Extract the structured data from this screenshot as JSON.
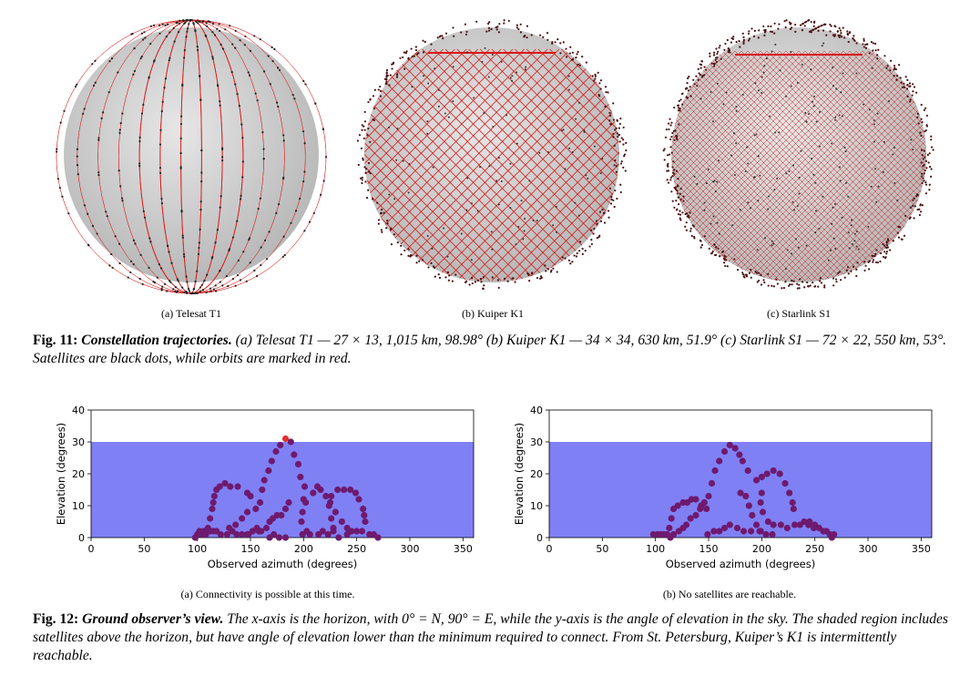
{
  "fig11": {
    "panels": [
      {
        "id": "a",
        "caption": "(a) Telesat T1"
      },
      {
        "id": "b",
        "caption": "(b) Kuiper K1"
      },
      {
        "id": "c",
        "caption": "(c) Starlink S1"
      }
    ],
    "label": "Fig. 11:",
    "title": "Constellation trajectories.",
    "text": " (a) Telesat T1 — 27 × 13, 1,015 km, 98.98° (b) Kuiper K1 — 34 × 34, 630 km, 51.9° (c) Starlink S1 — 72 × 22, 550 km, 53°. Satellites are black dots, while orbits are marked in red."
  },
  "fig12": {
    "panels": [
      {
        "id": "a",
        "caption": "(a) Connectivity is possible at this time."
      },
      {
        "id": "b",
        "caption": "(b) No satellites are reachable."
      }
    ],
    "label": "Fig. 12:",
    "title": "Ground observer’s view.",
    "text": " The x-axis is the horizon, with 0° = N, 90° = E, while the y-axis is the angle of elevation in the sky. The shaded region includes satellites above the horizon, but have angle of elevation lower than the minimum required to connect. From St. Petersburg, Kuiper’s K1 is intermittently reachable."
  },
  "colors": {
    "shade": "#8080f5",
    "dot": "#6e1a6e",
    "reachable": "#e0302a",
    "orbit": "#d81818",
    "globe": "#d9d9d9",
    "land": "#f2f2f2"
  },
  "chart_data": [
    {
      "type": "scatter",
      "xlabel": "Observed azimuth (degrees)",
      "ylabel": "Elevation (degrees)",
      "xlim": [
        0,
        360
      ],
      "ylim": [
        0,
        40
      ],
      "xticks": [
        0,
        50,
        100,
        150,
        200,
        250,
        300,
        350
      ],
      "yticks": [
        0,
        10,
        20,
        30,
        40
      ],
      "shaded_band": [
        0,
        30
      ],
      "series": [
        {
          "points": [
            [
              98,
              0
            ],
            [
              100,
              1
            ],
            [
              102,
              2
            ],
            [
              104,
              1
            ],
            [
              106,
              2
            ],
            [
              108,
              1
            ],
            [
              110,
              2
            ],
            [
              112,
              2
            ],
            [
              115,
              2
            ],
            [
              118,
              2
            ],
            [
              122,
              1
            ],
            [
              128,
              1
            ],
            [
              133,
              2
            ],
            [
              137,
              1
            ],
            [
              142,
              1
            ],
            [
              147,
              1
            ],
            [
              152,
              2
            ],
            [
              158,
              2
            ],
            [
              110,
              3
            ],
            [
              112,
              6
            ],
            [
              114,
              9
            ],
            [
              115,
              11
            ],
            [
              116,
              13
            ],
            [
              118,
              15
            ],
            [
              121,
              16
            ],
            [
              126,
              17
            ],
            [
              131,
              16
            ],
            [
              138,
              16
            ],
            [
              147,
              14
            ],
            [
              150,
              13
            ],
            [
              130,
              3
            ],
            [
              136,
              4
            ],
            [
              142,
              6
            ],
            [
              147,
              8
            ],
            [
              155,
              9
            ],
            [
              159,
              11
            ],
            [
              161,
              15
            ],
            [
              163,
              18
            ],
            [
              167,
              21
            ],
            [
              170,
              24
            ],
            [
              174,
              27
            ],
            [
              178,
              29
            ],
            [
              188,
              30
            ],
            [
              191,
              26
            ],
            [
              195,
              23
            ],
            [
              197,
              19
            ],
            [
              148,
              1
            ],
            [
              152,
              2
            ],
            [
              156,
              3
            ],
            [
              160,
              2
            ],
            [
              165,
              3
            ],
            [
              168,
              5
            ],
            [
              171,
              6
            ],
            [
              175,
              7
            ],
            [
              179,
              7
            ],
            [
              183,
              9
            ],
            [
              186,
              11
            ],
            [
              168,
              0
            ],
            [
              172,
              1
            ],
            [
              177,
              0
            ],
            [
              183,
              0
            ],
            [
              202,
              11
            ],
            [
              209,
              14
            ],
            [
              213,
              16
            ],
            [
              216,
              15
            ],
            [
              221,
              13
            ],
            [
              225,
              11
            ],
            [
              230,
              8
            ],
            [
              236,
              5
            ],
            [
              241,
              3
            ],
            [
              198,
              5
            ],
            [
              199,
              8
            ],
            [
              200,
              12
            ],
            [
              201,
              16
            ],
            [
              228,
              3
            ],
            [
              226,
              6
            ],
            [
              224,
              10
            ],
            [
              226,
              13
            ],
            [
              232,
              15
            ],
            [
              238,
              15
            ],
            [
              244,
              15
            ],
            [
              249,
              14
            ],
            [
              252,
              12
            ],
            [
              256,
              9
            ],
            [
              257,
              7
            ],
            [
              258,
              5
            ],
            [
              199,
              1
            ],
            [
              203,
              2
            ],
            [
              206,
              1
            ],
            [
              214,
              1
            ],
            [
              218,
              2
            ],
            [
              223,
              1
            ],
            [
              228,
              2
            ],
            [
              233,
              0
            ],
            [
              241,
              1
            ],
            [
              245,
              2
            ],
            [
              250,
              2
            ],
            [
              255,
              2
            ],
            [
              262,
              1
            ],
            [
              266,
              1
            ],
            [
              270,
              0
            ]
          ]
        },
        {
          "points": [
            [
              183,
              31
            ]
          ]
        }
      ]
    },
    {
      "type": "scatter",
      "xlabel": "Observed azimuth (degrees)",
      "ylabel": "Elevation (degrees)",
      "xlim": [
        0,
        360
      ],
      "ylim": [
        0,
        40
      ],
      "xticks": [
        0,
        50,
        100,
        150,
        200,
        250,
        300,
        350
      ],
      "yticks": [
        0,
        10,
        20,
        30,
        40
      ],
      "shaded_band": [
        0,
        30
      ],
      "series": [
        {
          "points": [
            [
              98,
              1
            ],
            [
              102,
              1
            ],
            [
              105,
              1
            ],
            [
              108,
              1
            ],
            [
              111,
              1
            ],
            [
              114,
              0
            ],
            [
              117,
              1
            ],
            [
              122,
              2
            ],
            [
              126,
              3
            ],
            [
              113,
              3
            ],
            [
              115,
              6
            ],
            [
              117,
              9
            ],
            [
              121,
              10
            ],
            [
              126,
              11
            ],
            [
              130,
              11
            ],
            [
              134,
              12
            ],
            [
              138,
              12
            ],
            [
              143,
              10
            ],
            [
              148,
              9
            ],
            [
              129,
              4
            ],
            [
              133,
              6
            ],
            [
              138,
              7
            ],
            [
              142,
              9
            ],
            [
              146,
              11
            ],
            [
              150,
              13
            ],
            [
              153,
              17
            ],
            [
              156,
              21
            ],
            [
              160,
              24
            ],
            [
              165,
              27
            ],
            [
              170,
              29
            ],
            [
              175,
              28
            ],
            [
              179,
              26
            ],
            [
              182,
              24
            ],
            [
              187,
              21
            ],
            [
              149,
              1
            ],
            [
              155,
              2
            ],
            [
              160,
              2
            ],
            [
              165,
              3
            ],
            [
              170,
              4
            ],
            [
              177,
              3
            ],
            [
              183,
              2
            ],
            [
              190,
              2
            ],
            [
              198,
              2
            ],
            [
              180,
              14
            ],
            [
              185,
              13
            ],
            [
              188,
              10
            ],
            [
              191,
              7
            ],
            [
              195,
              4
            ],
            [
              199,
              2
            ],
            [
              204,
              1
            ],
            [
              210,
              1
            ],
            [
              195,
              18
            ],
            [
              200,
              19
            ],
            [
              205,
              20
            ],
            [
              211,
              21
            ],
            [
              217,
              20
            ],
            [
              222,
              17
            ],
            [
              226,
              14
            ],
            [
              229,
              11
            ],
            [
              230,
              9
            ],
            [
              200,
              14
            ],
            [
              199,
              11
            ],
            [
              201,
              8
            ],
            [
              206,
              5
            ],
            [
              211,
              4
            ],
            [
              218,
              4
            ],
            [
              224,
              3
            ],
            [
              231,
              4
            ],
            [
              236,
              4
            ],
            [
              240,
              5
            ],
            [
              245,
              5
            ],
            [
              250,
              4
            ],
            [
              244,
              4
            ],
            [
              249,
              3
            ],
            [
              254,
              3
            ],
            [
              258,
              2
            ],
            [
              261,
              2
            ],
            [
              264,
              1
            ],
            [
              266,
              0
            ],
            [
              268,
              1
            ]
          ]
        }
      ]
    }
  ]
}
